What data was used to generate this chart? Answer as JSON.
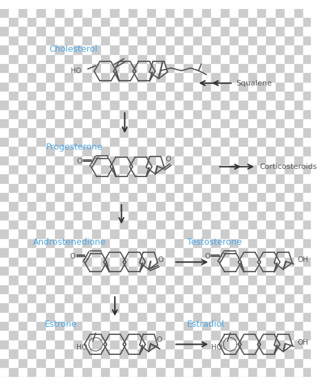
{
  "bg_light": "#cccccc",
  "bg_dark": "#ffffff",
  "structure_color": "#555555",
  "label_color": "#4da6e8",
  "arrow_color": "#333333",
  "figsize": [
    4.74,
    5.6
  ],
  "dpi": 100,
  "labels": {
    "cholesterol": "Cholesterol",
    "squalene": "Squalene",
    "progesterone": "Progesterone",
    "corticosteroids": "Corticosteroids",
    "androstenedione": "Androstenedione",
    "testosterone": "Testosterone",
    "estrone": "Estrone",
    "estradiol": "Estradiol"
  }
}
